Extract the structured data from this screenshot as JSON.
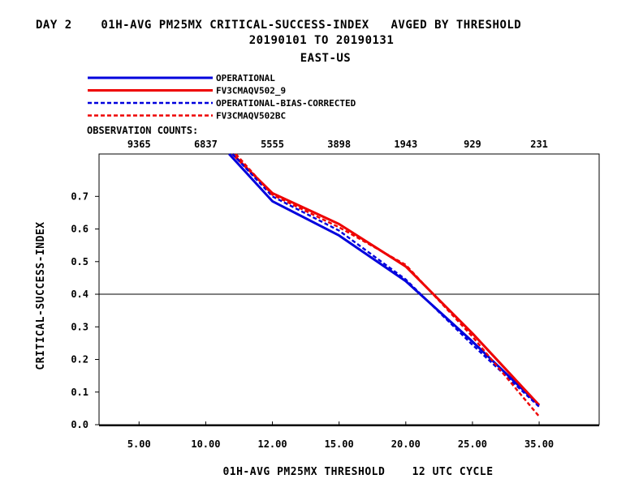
{
  "chart_data": {
    "type": "line",
    "title_line1": "DAY 2    01H-AVG PM25MX CRITICAL-SUCCESS-INDEX   AVGED BY THRESHOLD",
    "title_line2": "20190101 TO 20190131",
    "title_line3": "EAST-US",
    "xlabel": "01H-AVG PM25MX THRESHOLD    12 UTC CYCLE",
    "ylabel": "CRITICAL-SUCCESS-INDEX",
    "obs_label": "OBSERVATION COUNTS:",
    "x_positions": [
      1,
      2,
      3,
      4,
      5,
      6,
      7
    ],
    "x_tick_labels": [
      "5.00",
      "10.00",
      "12.00",
      "15.00",
      "20.00",
      "25.00",
      "35.00"
    ],
    "observation_counts": [
      "9365",
      "6837",
      "5555",
      "3898",
      "1943",
      "929",
      "231"
    ],
    "y_ticks": [
      "0.0",
      "0.1",
      "0.2",
      "0.3",
      "0.4",
      "0.5",
      "0.6",
      "0.7"
    ],
    "xlim": [
      0.4,
      7.9
    ],
    "ylim": [
      0.0,
      0.83
    ],
    "reference_line_y": 0.4,
    "series": [
      {
        "name": "OPERATIONAL",
        "color": "#0000dd",
        "style": "solid",
        "x": [
          2.35,
          3.0,
          4.0,
          5.0,
          6.0,
          7.0
        ],
        "values": [
          0.83,
          0.685,
          0.58,
          0.44,
          0.255,
          0.06
        ]
      },
      {
        "name": "FV3CMAQV502_9",
        "color": "#ee0000",
        "style": "solid",
        "x": [
          2.4,
          3.0,
          4.0,
          5.0,
          6.0,
          7.0
        ],
        "values": [
          0.83,
          0.71,
          0.615,
          0.485,
          0.28,
          0.06
        ]
      },
      {
        "name": "OPERATIONAL-BIAS-CORRECTED",
        "color": "#0000dd",
        "style": "dashed",
        "x": [
          2.4,
          3.0,
          4.0,
          5.0,
          6.0,
          7.0
        ],
        "values": [
          0.83,
          0.7,
          0.595,
          0.445,
          0.245,
          0.055
        ]
      },
      {
        "name": "FV3CMAQV502BC",
        "color": "#ee0000",
        "style": "dashed",
        "x": [
          2.45,
          3.0,
          4.0,
          5.0,
          6.0,
          7.0
        ],
        "values": [
          0.83,
          0.705,
          0.605,
          0.49,
          0.27,
          0.025
        ]
      }
    ]
  }
}
